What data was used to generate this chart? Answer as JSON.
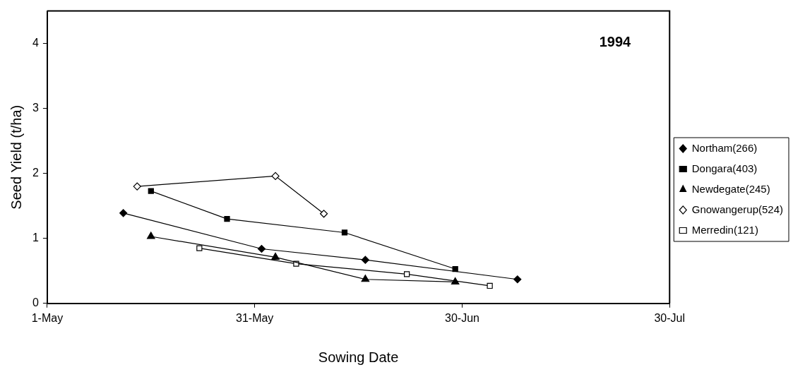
{
  "chart_data": {
    "type": "line",
    "title": "1994",
    "xlabel": "Sowing Date",
    "ylabel": "Seed Yield (t/ha)",
    "xlim": [
      "1994-05-01",
      "1994-07-30"
    ],
    "xticks": [
      {
        "value": "1994-05-01",
        "label": "1-May"
      },
      {
        "value": "1994-05-31",
        "label": "31-May"
      },
      {
        "value": "1994-06-30",
        "label": "30-Jun"
      },
      {
        "value": "1994-07-30",
        "label": "30-Jul"
      }
    ],
    "ylim": [
      0,
      4.5
    ],
    "yticks": [
      0,
      1,
      2,
      3,
      4
    ],
    "grid": false,
    "legend": "right",
    "line_style": "solid",
    "series": [
      {
        "name": "Northam(266)",
        "color": "#000000",
        "marker": "diamond",
        "x": [
          "1994-05-12",
          "1994-06-01",
          "1994-06-16",
          "1994-07-08"
        ],
        "values": [
          1.39,
          0.84,
          0.67,
          0.37
        ]
      },
      {
        "name": "Dongara(403)",
        "color": "#000000",
        "marker": "square",
        "x": [
          "1994-05-16",
          "1994-05-27",
          "1994-06-13",
          "1994-06-29"
        ],
        "values": [
          1.73,
          1.3,
          1.09,
          0.53
        ]
      },
      {
        "name": "Newdegate(245)",
        "color": "#000000",
        "marker": "triangle",
        "x": [
          "1994-05-16",
          "1994-06-03",
          "1994-06-16",
          "1994-06-29"
        ],
        "values": [
          1.03,
          0.71,
          0.37,
          0.33
        ]
      },
      {
        "name": "Gnowangerup(524)",
        "color": "#000000",
        "colors": [
          "#ffffff",
          "#ffffff",
          "#ffffff"
        ],
        "marker": "diamond",
        "x": [
          "1994-05-14",
          "1994-06-03",
          "1994-06-10"
        ],
        "values": [
          1.8,
          1.96,
          1.38
        ]
      },
      {
        "name": "Merredin(121)",
        "color": "#000000",
        "colors": [
          "#ffffff",
          "#ffffff",
          "#ffffff",
          "#ffffff"
        ],
        "marker": "square",
        "x": [
          "1994-05-23",
          "1994-06-06",
          "1994-06-22",
          "1994-07-04"
        ],
        "values": [
          0.85,
          0.61,
          0.45,
          0.27
        ]
      }
    ]
  }
}
